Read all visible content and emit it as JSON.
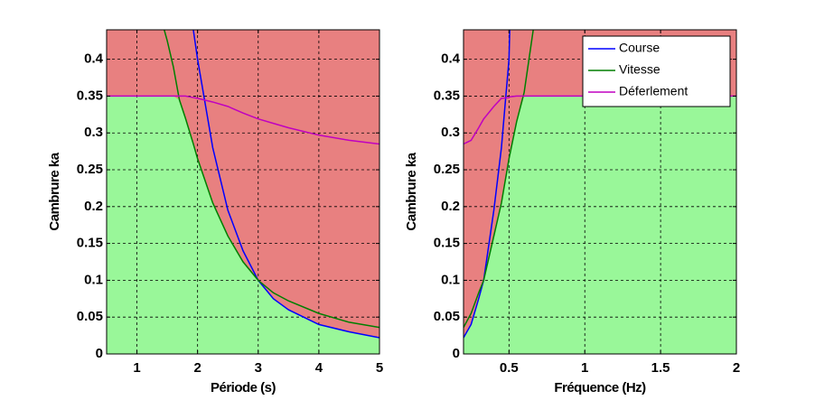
{
  "chart_data": [
    {
      "type": "line",
      "xlabel": "Période (s)",
      "ylabel": "Cambrure ka",
      "x": [
        0.5,
        1,
        1.45,
        1.5,
        1.6,
        1.7,
        1.8,
        1.93,
        2,
        2.25,
        2.5,
        2.75,
        3,
        3.25,
        3.5,
        4,
        4.5,
        5
      ],
      "series": [
        {
          "name": "Course",
          "color": "#0000ff",
          "values": [
            null,
            null,
            null,
            null,
            null,
            null,
            null,
            0.44,
            0.4,
            0.28,
            0.195,
            0.14,
            0.1,
            0.075,
            0.06,
            0.04,
            0.03,
            0.022
          ]
        },
        {
          "name": "Vitesse",
          "color": "#007f00",
          "values": [
            null,
            null,
            0.44,
            0.425,
            0.39,
            0.345,
            0.32,
            0.285,
            0.265,
            0.205,
            0.16,
            0.125,
            0.1,
            0.083,
            0.072,
            0.055,
            0.043,
            0.036
          ]
        },
        {
          "name": "Déferlement",
          "color": "#c000c0",
          "values": [
            0.35,
            0.35,
            0.35,
            0.35,
            0.35,
            0.35,
            0.35,
            0.348,
            0.347,
            0.342,
            0.336,
            0.327,
            0.319,
            0.313,
            0.307,
            0.297,
            0.29,
            0.285
          ]
        }
      ],
      "region_colors": {
        "above": "#e88080",
        "below": "#99f799"
      },
      "xlim": [
        0.5,
        5
      ],
      "xticks": [
        1,
        2,
        3,
        4,
        5
      ],
      "ylim": [
        0,
        0.44
      ],
      "yticks": [
        0,
        0.05,
        0.1,
        0.15,
        0.2,
        0.25,
        0.3,
        0.35,
        0.4
      ],
      "grid": true,
      "legend": false
    },
    {
      "type": "line",
      "xlabel": "Fréquence (Hz)",
      "ylabel": "Cambrure ka",
      "x": [
        0.2,
        0.25,
        0.3,
        0.333,
        0.4,
        0.45,
        0.5,
        0.505,
        0.55,
        0.6,
        0.66,
        0.7,
        1,
        1.5,
        2
      ],
      "series": [
        {
          "name": "Course",
          "color": "#0000ff",
          "values": [
            0.022,
            0.04,
            0.075,
            0.1,
            0.195,
            0.28,
            0.4,
            0.44,
            null,
            null,
            null,
            null,
            null,
            null,
            null
          ]
        },
        {
          "name": "Vitesse",
          "color": "#007f00",
          "values": [
            0.036,
            0.055,
            0.083,
            0.1,
            0.16,
            0.205,
            0.265,
            0.27,
            0.315,
            0.355,
            0.44,
            null,
            null,
            null,
            null
          ]
        },
        {
          "name": "Déferlement",
          "color": "#c000c0",
          "values": [
            0.285,
            0.29,
            0.307,
            0.319,
            0.336,
            0.347,
            0.348,
            0.349,
            0.35,
            0.35,
            0.35,
            0.35,
            0.35,
            0.35,
            0.35
          ]
        }
      ],
      "region_colors": {
        "above": "#e88080",
        "below": "#99f799"
      },
      "xlim": [
        0.2,
        2
      ],
      "xticks": [
        0.5,
        1,
        1.5,
        2
      ],
      "ylim": [
        0,
        0.44
      ],
      "yticks": [
        0,
        0.05,
        0.1,
        0.15,
        0.2,
        0.25,
        0.3,
        0.35,
        0.4
      ],
      "grid": true,
      "legend": "upper right"
    }
  ]
}
